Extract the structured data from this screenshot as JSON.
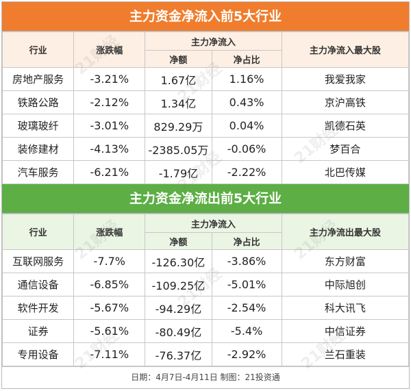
{
  "inflow": {
    "title": "主力资金净流入前5大行业",
    "headers": {
      "industry": "行业",
      "change": "涨跌幅",
      "main_net_flow": "主力净流入",
      "net_amount": "净额",
      "net_ratio": "净占比",
      "top_stock": "主力净流入最大股"
    },
    "rows": [
      {
        "industry": "房地产服务",
        "change": "-3.21%",
        "net_amount": "1.67亿",
        "net_ratio": "1.16%",
        "top_stock": "我爱我家"
      },
      {
        "industry": "铁路公路",
        "change": "-2.12%",
        "net_amount": "1.34亿",
        "net_ratio": "0.43%",
        "top_stock": "京沪高铁"
      },
      {
        "industry": "玻璃玻纤",
        "change": "-3.01%",
        "net_amount": "829.29万",
        "net_ratio": "0.04%",
        "top_stock": "凯德石英"
      },
      {
        "industry": "装修建材",
        "change": "-4.13%",
        "net_amount": "-2385.05万",
        "net_ratio": "-0.06%",
        "top_stock": "梦百合"
      },
      {
        "industry": "汽车服务",
        "change": "-6.21%",
        "net_amount": "-1.79亿",
        "net_ratio": "-2.22%",
        "top_stock": "北巴传媒"
      }
    ]
  },
  "outflow": {
    "title": "主力资金净流出前5大行业",
    "headers": {
      "industry": "行业",
      "change": "涨跌幅",
      "main_net_flow": "主力净流入",
      "net_amount": "净额",
      "net_ratio": "净占比",
      "top_stock": "主力净流出最大股"
    },
    "rows": [
      {
        "industry": "互联网服务",
        "change": "-7.7%",
        "net_amount": "-126.30亿",
        "net_ratio": "-3.86%",
        "top_stock": "东方财富"
      },
      {
        "industry": "通信设备",
        "change": "-6.85%",
        "net_amount": "-109.25亿",
        "net_ratio": "-5.01%",
        "top_stock": "中际旭创"
      },
      {
        "industry": "软件开发",
        "change": "-5.67%",
        "net_amount": "-94.29亿",
        "net_ratio": "-2.54%",
        "top_stock": "科大讯飞"
      },
      {
        "industry": "证券",
        "change": "-5.61%",
        "net_amount": "-80.49亿",
        "net_ratio": "-5.4%",
        "top_stock": "中信证券"
      },
      {
        "industry": "专用设备",
        "change": "-7.11%",
        "net_amount": "-76.37亿",
        "net_ratio": "-2.92%",
        "top_stock": "兰石重装"
      }
    ]
  },
  "footer": "日期：4月7日-4月11日  制图：21投资通",
  "watermark": "21财经",
  "colors": {
    "inflow_banner": "#ef7d2d",
    "outflow_banner": "#5cae45",
    "inflow_header_bg": "#fdefe3",
    "outflow_header_bg": "#eaf5e4"
  }
}
